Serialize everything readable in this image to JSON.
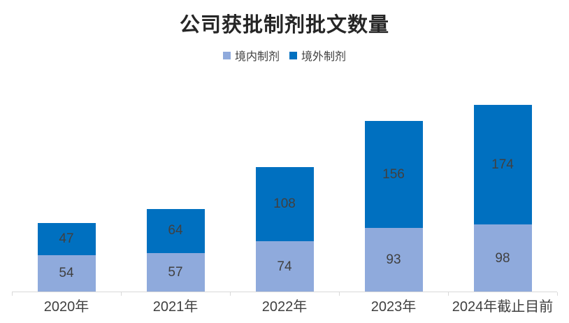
{
  "chart_data": {
    "type": "bar",
    "stacked": true,
    "title": "公司获批制剂批文数量",
    "categories": [
      "2020年",
      "2021年",
      "2022年",
      "2023年",
      "2024年截止目前"
    ],
    "series": [
      {
        "name": "境内制剂",
        "color": "#8FAADC",
        "values": [
          54,
          57,
          74,
          93,
          98
        ]
      },
      {
        "name": "境外制剂",
        "color": "#0070C0",
        "values": [
          47,
          64,
          108,
          156,
          174
        ]
      }
    ],
    "totals": [
      101,
      121,
      182,
      249,
      272
    ],
    "xlabel": "",
    "ylabel": "",
    "ylim": [
      0,
      272
    ],
    "grid": false,
    "legend_position": "top",
    "data_labels": true
  },
  "colors": {
    "domestic_series": "#8FAADC",
    "overseas_series": "#0070C0",
    "title_text": "#262626",
    "label_text": "#404040",
    "axis_line": "#D9D9D9",
    "background": "#FFFFFF"
  }
}
